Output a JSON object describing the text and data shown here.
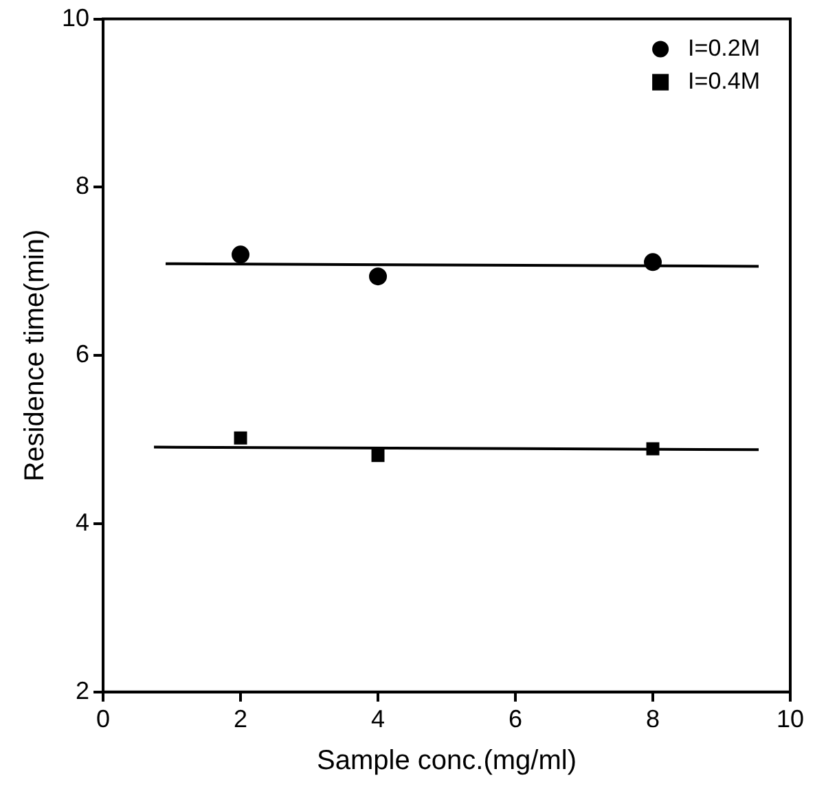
{
  "chart_data": {
    "type": "scatter",
    "xlabel": "Sample conc.(mg/ml)",
    "ylabel": "Residence time(min)",
    "xlim": [
      0,
      10
    ],
    "xticks": [
      0,
      2,
      4,
      6,
      8,
      10
    ],
    "ylim": [
      2,
      10
    ],
    "yticks": [
      2,
      4,
      6,
      8,
      10
    ],
    "grid": false,
    "legend": "top right",
    "series": [
      {
        "name": "I=0.2M",
        "color": "#000000",
        "marker": "circle",
        "x": [
          2,
          4,
          8
        ],
        "values": [
          7.2,
          6.94,
          7.11
        ]
      },
      {
        "name": "I=0.4M",
        "color": "#000000",
        "marker": "square",
        "x": [
          2,
          4,
          8
        ],
        "values": [
          5.02,
          4.81,
          4.89
        ]
      },
      {
        "type": "line",
        "color": "#000000",
        "marker": "none",
        "x": [
          0.91,
          9.54
        ],
        "values": [
          7.09,
          7.06
        ]
      },
      {
        "type": "line",
        "color": "#000000",
        "marker": "none",
        "x": [
          0.74,
          9.54
        ],
        "values": [
          4.91,
          4.88
        ]
      }
    ]
  }
}
